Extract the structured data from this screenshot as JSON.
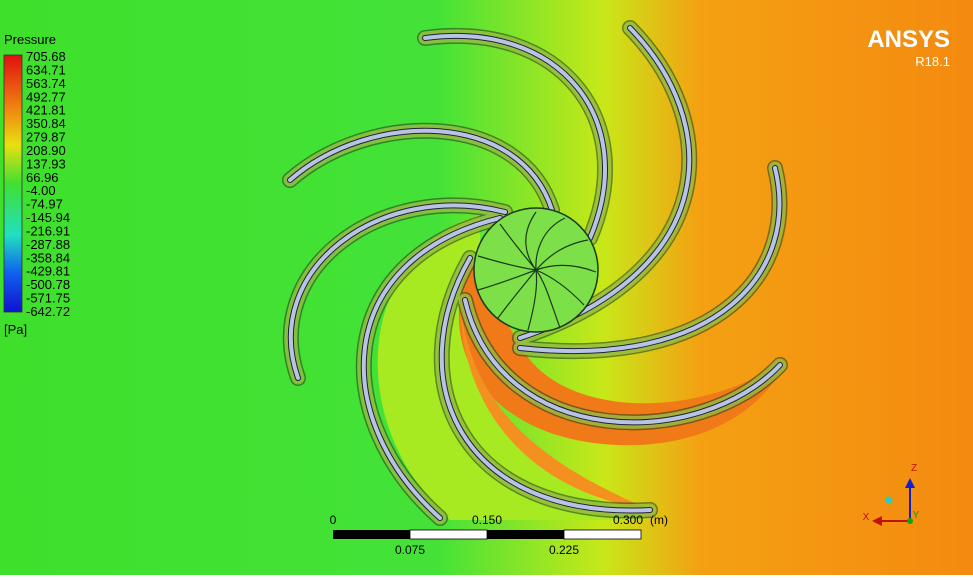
{
  "legend": {
    "title": "Pressure",
    "labels": [
      "705.68",
      "634.71",
      "563.74",
      "492.77",
      "421.81",
      "350.84",
      "279.87",
      "208.90",
      "137.93",
      "66.96",
      "-4.00",
      "-74.97",
      "-145.94",
      "-216.91",
      "-287.88",
      "-358.84",
      "-429.81",
      "-500.78",
      "-571.75",
      "-642.72"
    ],
    "unit": "[Pa]"
  },
  "logo": {
    "name": "ANSYS",
    "version": "R18.1"
  },
  "scale_bar": {
    "top_labels": [
      "0",
      "0.150",
      "0.300"
    ],
    "unit": "(m)",
    "bottom_labels": [
      "0.075",
      "0.225"
    ]
  },
  "axes": {
    "z": "Z",
    "x": "X",
    "y": "Y"
  }
}
